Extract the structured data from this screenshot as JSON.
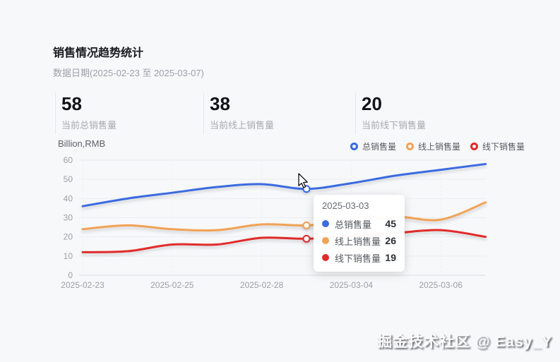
{
  "header": {
    "title": "销售情况趋势统计",
    "subtitle": "数据日期(2025-02-23 至 2025-03-07)"
  },
  "stats": {
    "items": [
      {
        "value": "58",
        "label": "当前总销售量"
      },
      {
        "value": "38",
        "label": "当前线上销售量"
      },
      {
        "value": "20",
        "label": "当前线下销售量"
      }
    ]
  },
  "chart_header": {
    "unit": "Billion,RMB"
  },
  "chart_data": {
    "type": "line",
    "title": "销售情况趋势统计",
    "ylabel": "Billion,RMB",
    "ylim": [
      0,
      60
    ],
    "y_ticks": [
      0,
      10,
      20,
      30,
      40,
      50,
      60
    ],
    "num_points": 10,
    "x_tick_labels": [
      {
        "index": 0,
        "label": "2025-02-23"
      },
      {
        "index": 2,
        "label": "2025-02-25"
      },
      {
        "index": 4,
        "label": "2025-02-28"
      },
      {
        "index": 6,
        "label": "2025-03-04"
      },
      {
        "index": 8,
        "label": "2025-03-06"
      }
    ],
    "series": [
      {
        "name": "总销售量",
        "color": "#3a6be0",
        "values": [
          36,
          40,
          43,
          46,
          47.5,
          45,
          48,
          52,
          55,
          58
        ]
      },
      {
        "name": "线上销售量",
        "color": "#f2a255",
        "values": [
          24,
          26,
          24,
          23.5,
          26.5,
          26,
          28,
          30.5,
          29,
          38
        ]
      },
      {
        "name": "线下销售量",
        "color": "#e12b2b",
        "values": [
          12,
          12.5,
          16,
          16,
          19.5,
          19,
          20.5,
          22,
          23.5,
          20
        ]
      }
    ],
    "hover_index": 5,
    "hover_label": "2025-03-03",
    "legend_position": "top-right",
    "grid": true
  },
  "tooltip": {
    "title": "2025-03-03",
    "rows": [
      {
        "label": "总销售量",
        "value": "45"
      },
      {
        "label": "线上销售量",
        "value": "26"
      },
      {
        "label": "线下销售量",
        "value": "19"
      }
    ]
  },
  "watermark": {
    "text": "掘金技术社区 @ Easy_Y"
  }
}
